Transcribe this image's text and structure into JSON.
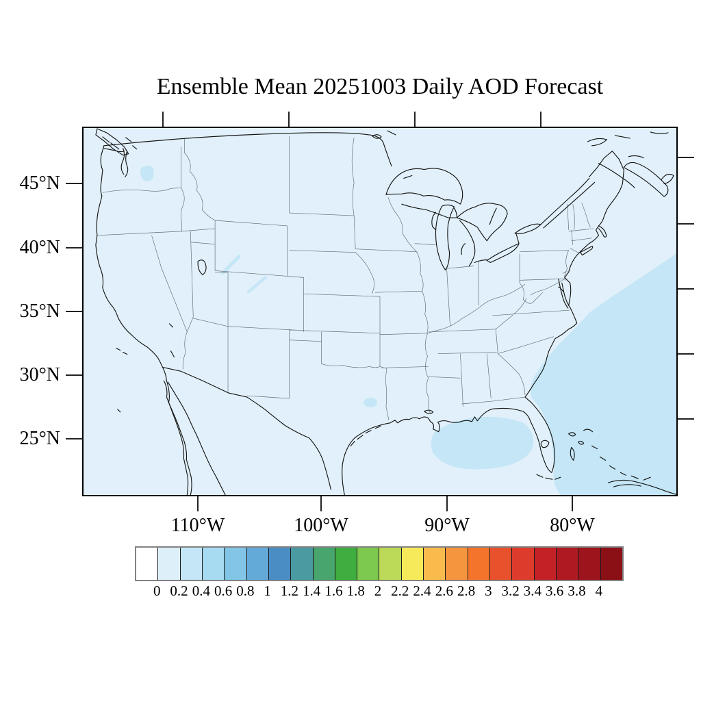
{
  "page": {
    "background_color": "#ffffff"
  },
  "title": "Ensemble Mean 20251003 Daily AOD Forecast",
  "map": {
    "background_color": "#e1f0fa",
    "shaded_color": "#c4e6f6",
    "coastline_color": "#141414",
    "state_line_color": "#5a6a72",
    "frame_color": "#000000",
    "shaded_regions": [
      "Gulf of Mexico south of Louisiana and the Florida panhandle",
      "western Atlantic off the southeastern U.S. coast and Bahamas",
      "central Washington",
      "northwestern Wyoming",
      "central Colorado",
      "upper Texas coast near Houston"
    ]
  },
  "axes": {
    "y_tick_labels": [
      "45°N",
      "40°N",
      "35°N",
      "30°N",
      "25°N"
    ],
    "x_tick_labels": [
      "110°W",
      "100°W",
      "90°W",
      "80°W"
    ]
  },
  "colorbar": {
    "tick_labels": [
      "0",
      "0.2",
      "0.4",
      "0.6",
      "0.8",
      "1",
      "1.2",
      "1.4",
      "1.6",
      "1.8",
      "2",
      "2.2",
      "2.4",
      "2.6",
      "2.8",
      "3",
      "3.2",
      "3.4",
      "3.6",
      "3.8",
      "4"
    ],
    "cell_colors": [
      "#FFFFFF",
      "#DDEFF9",
      "#C4E6F6",
      "#A6DBF2",
      "#82C5E6",
      "#63AAD8",
      "#4A8CC4",
      "#4A9AA2",
      "#47A56D",
      "#3FAD3F",
      "#7DC84E",
      "#BCD957",
      "#F7EA5A",
      "#F8BB4C",
      "#F5953E",
      "#F4742B",
      "#E9512D",
      "#DD3B2B",
      "#C42127",
      "#AF1A22",
      "#9C141C",
      "#8A1016"
    ],
    "outer_border_color": "#828282",
    "divider_color": "#1a1a1a"
  },
  "chart_data": {
    "type": "heatmap",
    "title": "Ensemble Mean 20251003 Daily AOD Forecast",
    "variable": "Aerosol Optical Depth (AOD), daily forecast",
    "statistic": "Ensemble Mean",
    "date": "20251003",
    "region": "Contiguous United States and adjacent ocean",
    "x_axis": {
      "label": "longitude",
      "tick_labels": [
        "110°W",
        "100°W",
        "90°W",
        "80°W"
      ]
    },
    "y_axis": {
      "label": "latitude",
      "tick_labels": [
        "45°N",
        "40°N",
        "35°N",
        "30°N",
        "25°N"
      ]
    },
    "colorbar_levels": [
      0,
      0.2,
      0.4,
      0.6,
      0.8,
      1,
      1.2,
      1.4,
      1.6,
      1.8,
      2,
      2.2,
      2.4,
      2.6,
      2.8,
      3,
      3.2,
      3.4,
      3.6,
      3.8,
      4
    ],
    "colorbar_colors": [
      "#FFFFFF",
      "#DDEFF9",
      "#C4E6F6",
      "#A6DBF2",
      "#82C5E6",
      "#63AAD8",
      "#4A8CC4",
      "#4A9AA2",
      "#47A56D",
      "#3FAD3F",
      "#7DC84E",
      "#BCD957",
      "#F7EA5A",
      "#F8BB4C",
      "#F5953E",
      "#F4742B",
      "#E9512D",
      "#DD3B2B",
      "#C42127",
      "#AF1A22",
      "#9C141C",
      "#8A1016"
    ],
    "grid": false,
    "legend_position": "horizontal labelbar below map",
    "field_values": [
      {
        "area": "most of CONUS land and surrounding ocean",
        "aod": "0-0.2"
      },
      {
        "area": "Gulf of Mexico south of Louisiana/Mississippi/Florida panhandle",
        "aod": "0.2-0.4"
      },
      {
        "area": "western Atlantic off Carolinas, Georgia, Florida and Bahamas",
        "aod": "0.2-0.4"
      },
      {
        "area": "small patch central Washington",
        "aod": "0.2-0.4"
      },
      {
        "area": "thin streak northwestern Wyoming",
        "aod": "0.2-0.4"
      },
      {
        "area": "thin streak central Colorado",
        "aod": "0.2-0.4"
      },
      {
        "area": "small patch upper Texas coast",
        "aod": "0.2-0.4"
      }
    ]
  }
}
